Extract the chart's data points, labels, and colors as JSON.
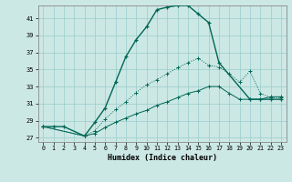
{
  "xlabel": "Humidex (Indice chaleur)",
  "background_color": "#cce8e4",
  "line_color": "#006655",
  "grid_color": "#99cccc",
  "xlim": [
    -0.5,
    23.5
  ],
  "ylim": [
    26.5,
    42.5
  ],
  "xticks": [
    0,
    1,
    2,
    3,
    4,
    5,
    6,
    7,
    8,
    9,
    10,
    11,
    12,
    13,
    14,
    15,
    16,
    17,
    18,
    19,
    20,
    21,
    22,
    23
  ],
  "yticks": [
    27,
    29,
    31,
    33,
    35,
    37,
    39,
    41
  ],
  "line1_x": [
    0,
    1,
    2,
    4,
    5,
    6,
    7,
    8,
    9,
    10,
    11,
    12,
    13,
    14,
    15,
    16,
    17,
    20,
    21,
    22,
    23
  ],
  "line1_y": [
    28.3,
    28.3,
    28.3,
    27.2,
    28.8,
    30.5,
    33.5,
    36.5,
    38.5,
    40.0,
    42.0,
    42.3,
    42.5,
    42.5,
    41.5,
    40.5,
    35.8,
    31.5,
    31.5,
    31.5,
    31.5
  ],
  "line2_x": [
    0,
    4,
    5,
    6,
    7,
    8,
    9,
    10,
    11,
    12,
    13,
    14,
    15,
    16,
    17,
    18,
    19,
    20,
    21,
    22,
    23
  ],
  "line2_y": [
    28.3,
    27.2,
    27.8,
    29.2,
    30.3,
    31.2,
    32.3,
    33.2,
    33.8,
    34.5,
    35.2,
    35.8,
    36.3,
    35.5,
    35.3,
    34.5,
    33.5,
    34.8,
    32.2,
    31.7,
    31.7
  ],
  "line3_x": [
    0,
    4,
    5,
    6,
    7,
    8,
    9,
    10,
    11,
    12,
    13,
    14,
    15,
    16,
    17,
    18,
    19,
    20,
    21,
    22,
    23
  ],
  "line3_y": [
    28.3,
    27.2,
    27.5,
    28.2,
    28.8,
    29.3,
    29.8,
    30.2,
    30.8,
    31.2,
    31.7,
    32.2,
    32.5,
    33.0,
    33.0,
    32.2,
    31.5,
    31.5,
    31.5,
    31.8,
    31.8
  ]
}
